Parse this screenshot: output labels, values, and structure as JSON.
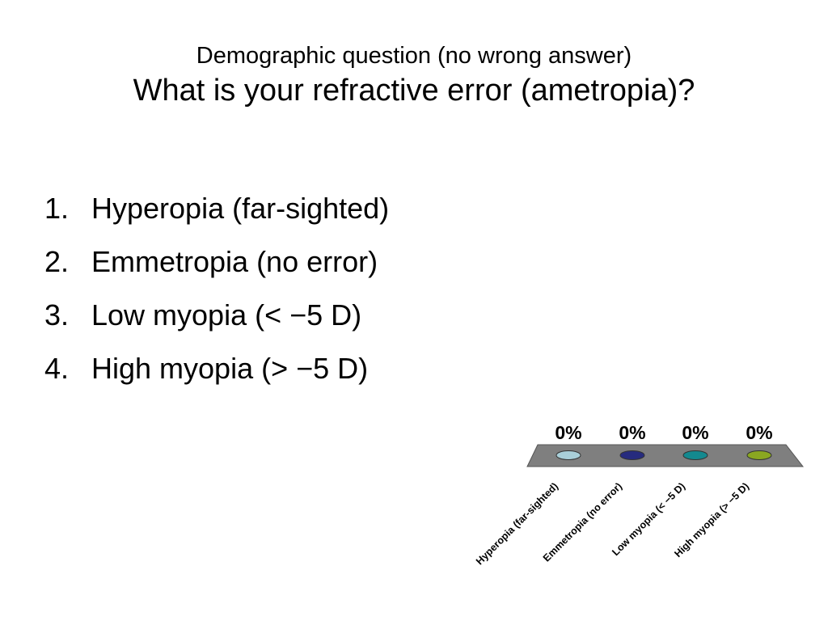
{
  "slide": {
    "subtitle": "Demographic question (no wrong answer)",
    "title": "What is your refractive error (ametropia)?"
  },
  "options": [
    {
      "num": "1.",
      "label": "Hyperopia (far-sighted)"
    },
    {
      "num": "2.",
      "label": "Emmetropia (no error)"
    },
    {
      "num": "3.",
      "label": "Low myopia (< −5 D)"
    },
    {
      "num": "4.",
      "label": "High myopia (> −5 D)"
    }
  ],
  "chart_data": {
    "type": "bar",
    "categories": [
      "Hyperopia (far-sighted)",
      "Emmetropia (no error)",
      "Low myopia (< −5 D)",
      "High myopia (> −5 D)"
    ],
    "values": [
      0,
      0,
      0,
      0
    ],
    "value_labels": [
      "0%",
      "0%",
      "0%",
      "0%"
    ],
    "colors": [
      "#a9cfd9",
      "#262b7e",
      "#13898f",
      "#8aa721"
    ],
    "floor_color": "#7f7f7f",
    "ylim": [
      0,
      100
    ]
  }
}
